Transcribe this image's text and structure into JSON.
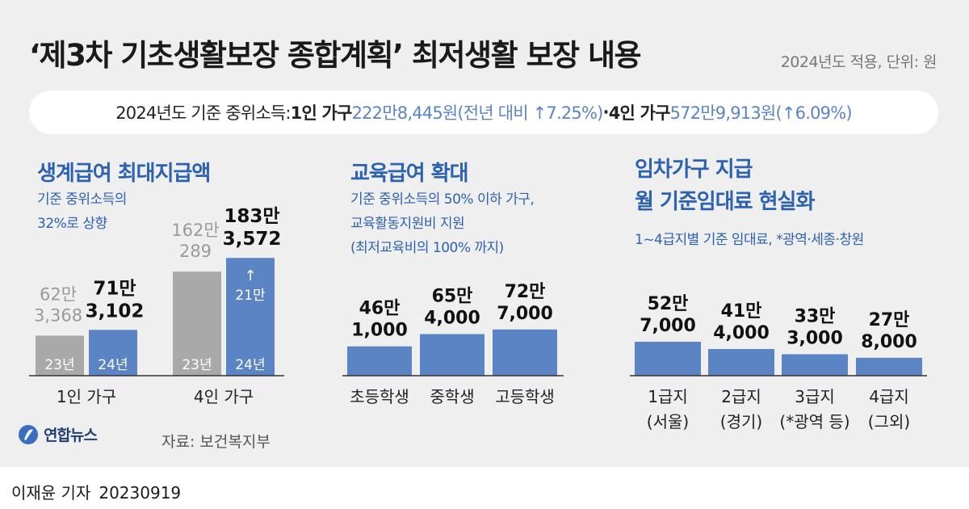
{
  "header": {
    "title": "‘제3차 기초생활보장 종합계획’ 최저생활 보장 내용",
    "unit_note": "2024년도 적용, 단위: 원"
  },
  "info_bar": {
    "prefix": "2024년도 기준 중위소득: ",
    "one_person_label": "1인 가구 ",
    "one_person_value": "222만8,445원(전년 대비 ↑7.25%)",
    "separator": "·",
    "four_person_label": "4인 가구 ",
    "four_person_value": "572만9,913원(↑6.09%)"
  },
  "sections": {
    "livelihood": {
      "title": "생계급여 최대지급액",
      "sub1": "기준 중위소득의",
      "sub2": "32%로 상향"
    },
    "education": {
      "title": "교육급여 확대",
      "sub1": "기준 중위소득의 50% 이하 가구,",
      "sub2": "교육활동지원비 지원",
      "sub3": "(최저교육비의 100% 까지)"
    },
    "housing": {
      "title1": "임차가구 지급",
      "title2": "월 기준임대료 현실화",
      "sub1": "1~4급지별 기준 임대료, *광역·세종·창원"
    }
  },
  "chart_data": [
    {
      "type": "bar",
      "name": "생계급여 최대지급액",
      "categories": [
        "1인 가구",
        "4인 가구"
      ],
      "series": [
        {
          "name": "23년",
          "values": [
            623368,
            1620289
          ],
          "labels": [
            "62만\n3,368",
            "162만\n289"
          ],
          "color": "#a9a9a9"
        },
        {
          "name": "24년",
          "values": [
            713102,
            1833572
          ],
          "labels": [
            "71만\n3,102",
            "183만\n3,572"
          ],
          "color": "#5b84c4"
        }
      ],
      "annotation": {
        "arrow": "↑",
        "text": "21만"
      }
    },
    {
      "type": "bar",
      "name": "교육급여 확대",
      "categories": [
        "초등학생",
        "중학생",
        "고등학생"
      ],
      "values": [
        461000,
        654000,
        727000
      ],
      "labels": [
        "46만\n1,000",
        "65만\n4,000",
        "72만\n7,000"
      ],
      "color": "#5b84c4"
    },
    {
      "type": "bar",
      "name": "임차가구 월 기준임대료",
      "categories": [
        "1급지\n(서울)",
        "2급지\n(경기)",
        "3급지\n(*광역 등)",
        "4급지\n(그외)"
      ],
      "values": [
        527000,
        414000,
        333000,
        278000
      ],
      "labels": [
        "52만\n7,000",
        "41만\n4,000",
        "33만\n3,000",
        "27만\n8,000"
      ],
      "color": "#5b84c4"
    }
  ],
  "footer": {
    "logo_text": "연합뉴스",
    "source": "자료: 보건복지부",
    "reporter": "이재윤 기자",
    "date": "20230919"
  },
  "colors": {
    "accent": "#2d62b0",
    "bar_blue": "#5b84c4",
    "bar_gray": "#a9a9a9",
    "background": "#efefef"
  }
}
